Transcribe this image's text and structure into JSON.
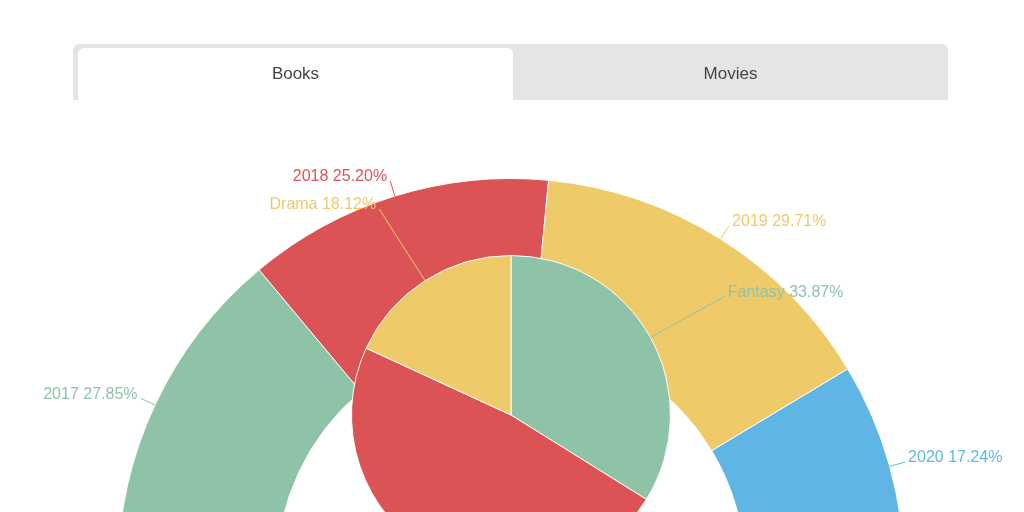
{
  "chart_data": [
    {
      "type": "other",
      "annotations": [
        "Books",
        "Movies"
      ]
    },
    {
      "type": "donut",
      "categories": [
        "2017",
        "2018",
        "2019",
        "2020"
      ],
      "values": [
        27.85,
        25.2,
        29.71,
        17.24
      ],
      "colors": [
        "#8fc3a8",
        "#dc5356",
        "#eeca69",
        "#5fb6e4"
      ],
      "value_labels": [
        "27.85%",
        "25.20%",
        "29.71%",
        "17.24%"
      ]
    },
    {
      "type": "pie",
      "categories": [
        "Fantasy",
        null,
        "Drama"
      ],
      "values": [
        33.87,
        48.01,
        18.12
      ],
      "colors": [
        "#8fc3a8",
        "#dc5356",
        "#eeca69"
      ],
      "value_labels": [
        "33.87%",
        null,
        "18.12%"
      ]
    }
  ]
}
